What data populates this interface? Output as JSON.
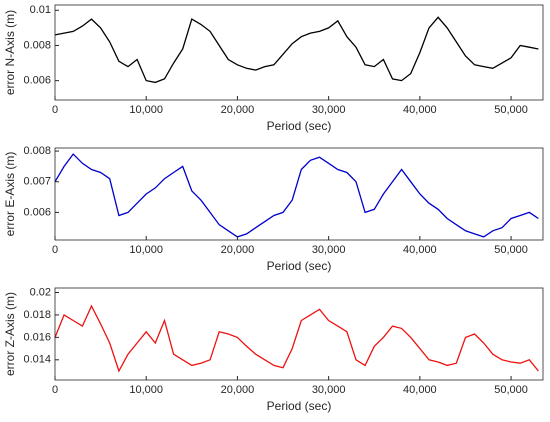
{
  "chart_data": [
    {
      "type": "line",
      "y_label": "error N-Axis (m)",
      "x_label": "Period (sec)",
      "color": "#000000",
      "xlim": [
        0,
        53500
      ],
      "ylim": [
        0.0049,
        0.0103
      ],
      "xticks": [
        0,
        {
          "value": 10000,
          "label": "10,000"
        },
        {
          "value": 20000,
          "label": "20,000"
        },
        {
          "value": 30000,
          "label": "30,000"
        },
        {
          "value": 40000,
          "label": "40,000"
        },
        {
          "value": 50000,
          "label": "50,000"
        }
      ],
      "yticks": [
        0.006,
        0.008,
        0.01
      ],
      "x": [
        0,
        1000,
        2000,
        3000,
        4000,
        5000,
        6000,
        7000,
        8000,
        9000,
        10000,
        11000,
        12000,
        13000,
        14000,
        15000,
        16000,
        17000,
        18000,
        19000,
        20000,
        21000,
        22000,
        23000,
        24000,
        25000,
        26000,
        27000,
        28000,
        29000,
        30000,
        31000,
        32000,
        33000,
        34000,
        35000,
        36000,
        37000,
        38000,
        39000,
        40000,
        41000,
        42000,
        43000,
        44000,
        45000,
        46000,
        47000,
        48000,
        49000,
        50000,
        51000,
        52000,
        53000
      ],
      "values": [
        0.0086,
        0.0087,
        0.0088,
        0.0091,
        0.0095,
        0.009,
        0.0082,
        0.0071,
        0.0068,
        0.0072,
        0.006,
        0.0059,
        0.0061,
        0.007,
        0.0078,
        0.0095,
        0.0092,
        0.0088,
        0.008,
        0.0072,
        0.0069,
        0.0067,
        0.0066,
        0.0068,
        0.0069,
        0.0075,
        0.0081,
        0.0085,
        0.0087,
        0.0088,
        0.009,
        0.0094,
        0.0085,
        0.0079,
        0.0069,
        0.0068,
        0.0072,
        0.0061,
        0.006,
        0.0064,
        0.0076,
        0.009,
        0.0096,
        0.009,
        0.0082,
        0.0074,
        0.0069,
        0.0068,
        0.0067,
        0.007,
        0.0073,
        0.008,
        0.0079,
        0.0078
      ]
    },
    {
      "type": "line",
      "y_label": "error E-Axis (m)",
      "x_label": "Period (sec)",
      "color": "#0000cc",
      "xlim": [
        0,
        53500
      ],
      "ylim": [
        0.0051,
        0.0081
      ],
      "xticks": [
        0,
        {
          "value": 10000,
          "label": "10,000"
        },
        {
          "value": 20000,
          "label": "20,000"
        },
        {
          "value": 30000,
          "label": "30,000"
        },
        {
          "value": 40000,
          "label": "40,000"
        },
        {
          "value": 50000,
          "label": "50,000"
        }
      ],
      "yticks": [
        0.006,
        0.007,
        0.008
      ],
      "x": [
        0,
        1000,
        2000,
        3000,
        4000,
        5000,
        6000,
        7000,
        8000,
        9000,
        10000,
        11000,
        12000,
        13000,
        14000,
        15000,
        16000,
        17000,
        18000,
        19000,
        20000,
        21000,
        22000,
        23000,
        24000,
        25000,
        26000,
        27000,
        28000,
        29000,
        30000,
        31000,
        32000,
        33000,
        34000,
        35000,
        36000,
        37000,
        38000,
        39000,
        40000,
        41000,
        42000,
        43000,
        44000,
        45000,
        46000,
        47000,
        48000,
        49000,
        50000,
        51000,
        52000,
        53000
      ],
      "values": [
        0.007,
        0.0075,
        0.0079,
        0.0076,
        0.0074,
        0.0073,
        0.0071,
        0.0059,
        0.006,
        0.0063,
        0.0066,
        0.0068,
        0.0071,
        0.0073,
        0.0075,
        0.0067,
        0.0064,
        0.006,
        0.0056,
        0.0054,
        0.0052,
        0.0053,
        0.0055,
        0.0057,
        0.0059,
        0.006,
        0.0064,
        0.0074,
        0.0077,
        0.0078,
        0.0076,
        0.0074,
        0.0073,
        0.007,
        0.006,
        0.0061,
        0.0066,
        0.007,
        0.0074,
        0.007,
        0.0066,
        0.0063,
        0.0061,
        0.0058,
        0.0056,
        0.0054,
        0.0053,
        0.0052,
        0.0054,
        0.0055,
        0.0058,
        0.0059,
        0.006,
        0.0058
      ]
    },
    {
      "type": "line",
      "y_label": "error Z-Axis (m)",
      "x_label": "Period (sec)",
      "color": "#ee1111",
      "xlim": [
        0,
        53500
      ],
      "ylim": [
        0.0122,
        0.0204
      ],
      "xticks": [
        0,
        {
          "value": 10000,
          "label": "10,000"
        },
        {
          "value": 20000,
          "label": "20,000"
        },
        {
          "value": 30000,
          "label": "30,000"
        },
        {
          "value": 40000,
          "label": "40,000"
        },
        {
          "value": 50000,
          "label": "50,000"
        }
      ],
      "yticks": [
        0.014,
        0.016,
        0.018,
        0.02
      ],
      "x": [
        0,
        1000,
        2000,
        3000,
        4000,
        5000,
        6000,
        7000,
        8000,
        9000,
        10000,
        11000,
        12000,
        13000,
        14000,
        15000,
        16000,
        17000,
        18000,
        19000,
        20000,
        21000,
        22000,
        23000,
        24000,
        25000,
        26000,
        27000,
        28000,
        29000,
        30000,
        31000,
        32000,
        33000,
        34000,
        35000,
        36000,
        37000,
        38000,
        39000,
        40000,
        41000,
        42000,
        43000,
        44000,
        45000,
        46000,
        47000,
        48000,
        49000,
        50000,
        51000,
        52000,
        53000
      ],
      "values": [
        0.016,
        0.018,
        0.0175,
        0.017,
        0.0188,
        0.0172,
        0.0155,
        0.013,
        0.0145,
        0.0155,
        0.0165,
        0.0155,
        0.0175,
        0.0145,
        0.014,
        0.0135,
        0.0137,
        0.014,
        0.0165,
        0.0163,
        0.016,
        0.0152,
        0.0145,
        0.014,
        0.0135,
        0.0133,
        0.015,
        0.0175,
        0.018,
        0.0185,
        0.0175,
        0.017,
        0.0165,
        0.014,
        0.0135,
        0.0152,
        0.016,
        0.017,
        0.0168,
        0.016,
        0.015,
        0.014,
        0.0138,
        0.0135,
        0.0137,
        0.016,
        0.0163,
        0.0155,
        0.0145,
        0.014,
        0.0138,
        0.0137,
        0.014,
        0.013
      ]
    }
  ]
}
